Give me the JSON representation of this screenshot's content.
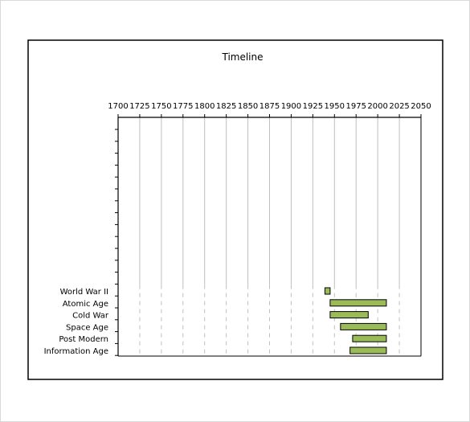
{
  "chart_data": {
    "type": "bar",
    "title": "Timeline",
    "xlabel": "",
    "ylabel": "",
    "xlim": [
      1700,
      2050
    ],
    "x_ticks": [
      "1700",
      "1725",
      "1750",
      "1775",
      "1800",
      "1825",
      "1850",
      "1875",
      "1900",
      "1925",
      "1950",
      "1975",
      "2000",
      "2025",
      "2050"
    ],
    "grid": true,
    "legend": "none",
    "categories": [
      "World War II",
      "Atomic Age",
      "Cold War",
      "Space Age",
      "Post Modern",
      "Information Age"
    ],
    "series": [
      {
        "start": [
          1939,
          1945,
          1945,
          1957,
          1971,
          1968
        ],
        "end": [
          1945,
          2010,
          1989,
          2010,
          2010,
          2010
        ]
      }
    ],
    "colors": {
      "bar_fill": "#9bbb59",
      "bar_stroke": "#000000",
      "grid": "#bfbfbf"
    }
  }
}
